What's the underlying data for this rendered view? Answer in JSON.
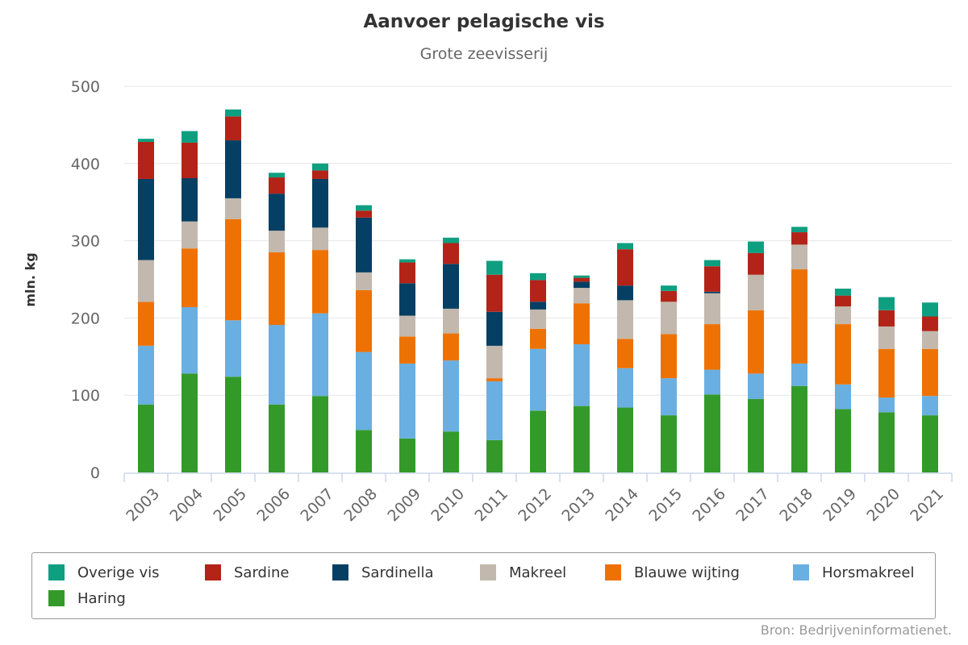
{
  "chart_data": {
    "type": "bar",
    "stacked": true,
    "title": "Aanvoer pelagische vis",
    "subtitle": "Grote zeevisserij",
    "ylabel": "mln. kg",
    "ylim": [
      0,
      500
    ],
    "yticks": [
      0,
      100,
      200,
      300,
      400,
      500
    ],
    "grid": true,
    "legend_position": "bottom",
    "credits": "Bron: Bedrijveninformatienet.",
    "categories": [
      "2003",
      "2004",
      "2005",
      "2006",
      "2007",
      "2008",
      "2009",
      "2010",
      "2011",
      "2012",
      "2013",
      "2014",
      "2015",
      "2016",
      "2017",
      "2018",
      "2019",
      "2020",
      "2021"
    ],
    "series": [
      {
        "name": "Haring",
        "color": "#339a2a",
        "values": [
          88,
          128,
          124,
          88,
          99,
          55,
          44,
          53,
          42,
          80,
          86,
          84,
          74,
          101,
          95,
          112,
          82,
          78,
          74
        ]
      },
      {
        "name": "Horsmakreel",
        "color": "#6aafe1",
        "values": [
          76,
          86,
          73,
          103,
          107,
          101,
          97,
          92,
          76,
          80,
          80,
          51,
          48,
          32,
          33,
          29,
          32,
          19,
          25
        ]
      },
      {
        "name": "Blauwe wijting",
        "color": "#ee7203",
        "values": [
          57,
          76,
          131,
          94,
          82,
          80,
          35,
          35,
          4,
          26,
          53,
          38,
          57,
          59,
          82,
          122,
          78,
          63,
          61
        ]
      },
      {
        "name": "Makreel",
        "color": "#c2b8ad",
        "values": [
          54,
          35,
          27,
          28,
          29,
          23,
          27,
          32,
          42,
          25,
          20,
          50,
          42,
          40,
          46,
          32,
          23,
          29,
          23
        ]
      },
      {
        "name": "Sardinella",
        "color": "#053f63",
        "values": [
          105,
          56,
          75,
          48,
          63,
          71,
          42,
          58,
          44,
          10,
          8,
          19,
          0,
          2,
          0,
          0,
          0,
          0,
          0
        ]
      },
      {
        "name": "Sardine",
        "color": "#b42317",
        "values": [
          48,
          46,
          31,
          21,
          11,
          9,
          27,
          27,
          48,
          28,
          5,
          47,
          14,
          33,
          28,
          16,
          14,
          21,
          19
        ]
      },
      {
        "name": "Overige vis",
        "color": "#0e9f81",
        "values": [
          4,
          15,
          9,
          6,
          9,
          7,
          4,
          7,
          18,
          9,
          3,
          8,
          7,
          8,
          15,
          7,
          9,
          17,
          18
        ]
      }
    ]
  }
}
